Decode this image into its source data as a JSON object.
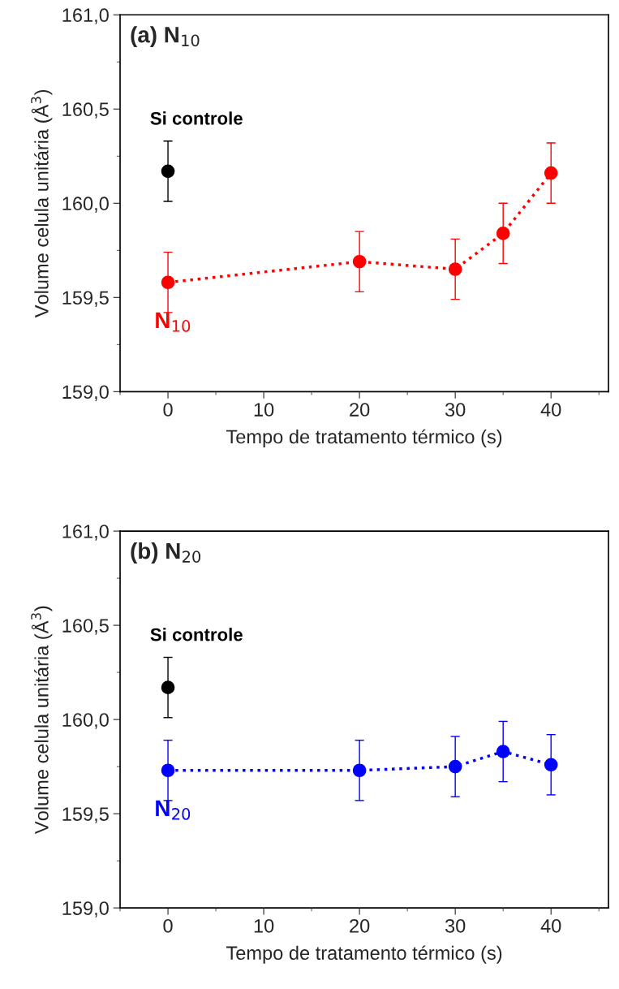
{
  "chart_data": [
    {
      "type": "line",
      "title": "(a) N$_{10}$",
      "xlabel": "Tempo de tratamento térmico (s)",
      "ylabel": "Volume celula unitária (Å$^{3}$)",
      "xlim": [
        -5,
        46
      ],
      "xticks": [
        0,
        10,
        20,
        30,
        40
      ],
      "ylim": [
        159.0,
        161.0
      ],
      "yticks": [
        {
          "value": 159.0,
          "label": "159,0"
        },
        {
          "value": 159.5,
          "label": "159,5"
        },
        {
          "value": 160.0,
          "label": "160,0"
        },
        {
          "value": 160.5,
          "label": "160,5"
        },
        {
          "value": 161.0,
          "label": "161,0"
        }
      ],
      "grid": false,
      "legend": false,
      "marker": "circle",
      "series": [
        {
          "name": "Si controle",
          "type": "scatter",
          "color": "#000000",
          "x": [
            0
          ],
          "values": [
            160.17
          ],
          "errors": [
            0.16
          ]
        },
        {
          "name": "N$_{10}$",
          "type": "line",
          "line_style": "dotted",
          "color": "#ff0000",
          "x": [
            0,
            20,
            30,
            35,
            40
          ],
          "values": [
            159.58,
            159.69,
            159.65,
            159.84,
            160.16
          ],
          "errors": [
            0.16,
            0.16,
            0.16,
            0.16,
            0.16
          ]
        }
      ]
    },
    {
      "type": "line",
      "title": "(b) N$_{20}$",
      "xlabel": "Tempo de tratamento térmico (s)",
      "ylabel": "Volume celula unitária (Å$^{3}$)",
      "xlim": [
        -5,
        46
      ],
      "xticks": [
        0,
        10,
        20,
        30,
        40
      ],
      "ylim": [
        159.0,
        161.0
      ],
      "yticks": [
        {
          "value": 159.0,
          "label": "159,0"
        },
        {
          "value": 159.5,
          "label": "159,5"
        },
        {
          "value": 160.0,
          "label": "160,0"
        },
        {
          "value": 160.5,
          "label": "160,5"
        },
        {
          "value": 161.0,
          "label": "161,0"
        }
      ],
      "grid": false,
      "legend": false,
      "marker": "circle",
      "series": [
        {
          "name": "Si controle",
          "type": "scatter",
          "color": "#000000",
          "x": [
            0
          ],
          "values": [
            160.17
          ],
          "errors": [
            0.16
          ]
        },
        {
          "name": "N$_{20}$",
          "type": "line",
          "line_style": "dotted",
          "color": "#0000ff",
          "x": [
            0,
            20,
            30,
            35,
            40
          ],
          "values": [
            159.73,
            159.73,
            159.75,
            159.83,
            159.76
          ],
          "errors": [
            0.16,
            0.16,
            0.16,
            0.16,
            0.16
          ]
        }
      ]
    }
  ]
}
